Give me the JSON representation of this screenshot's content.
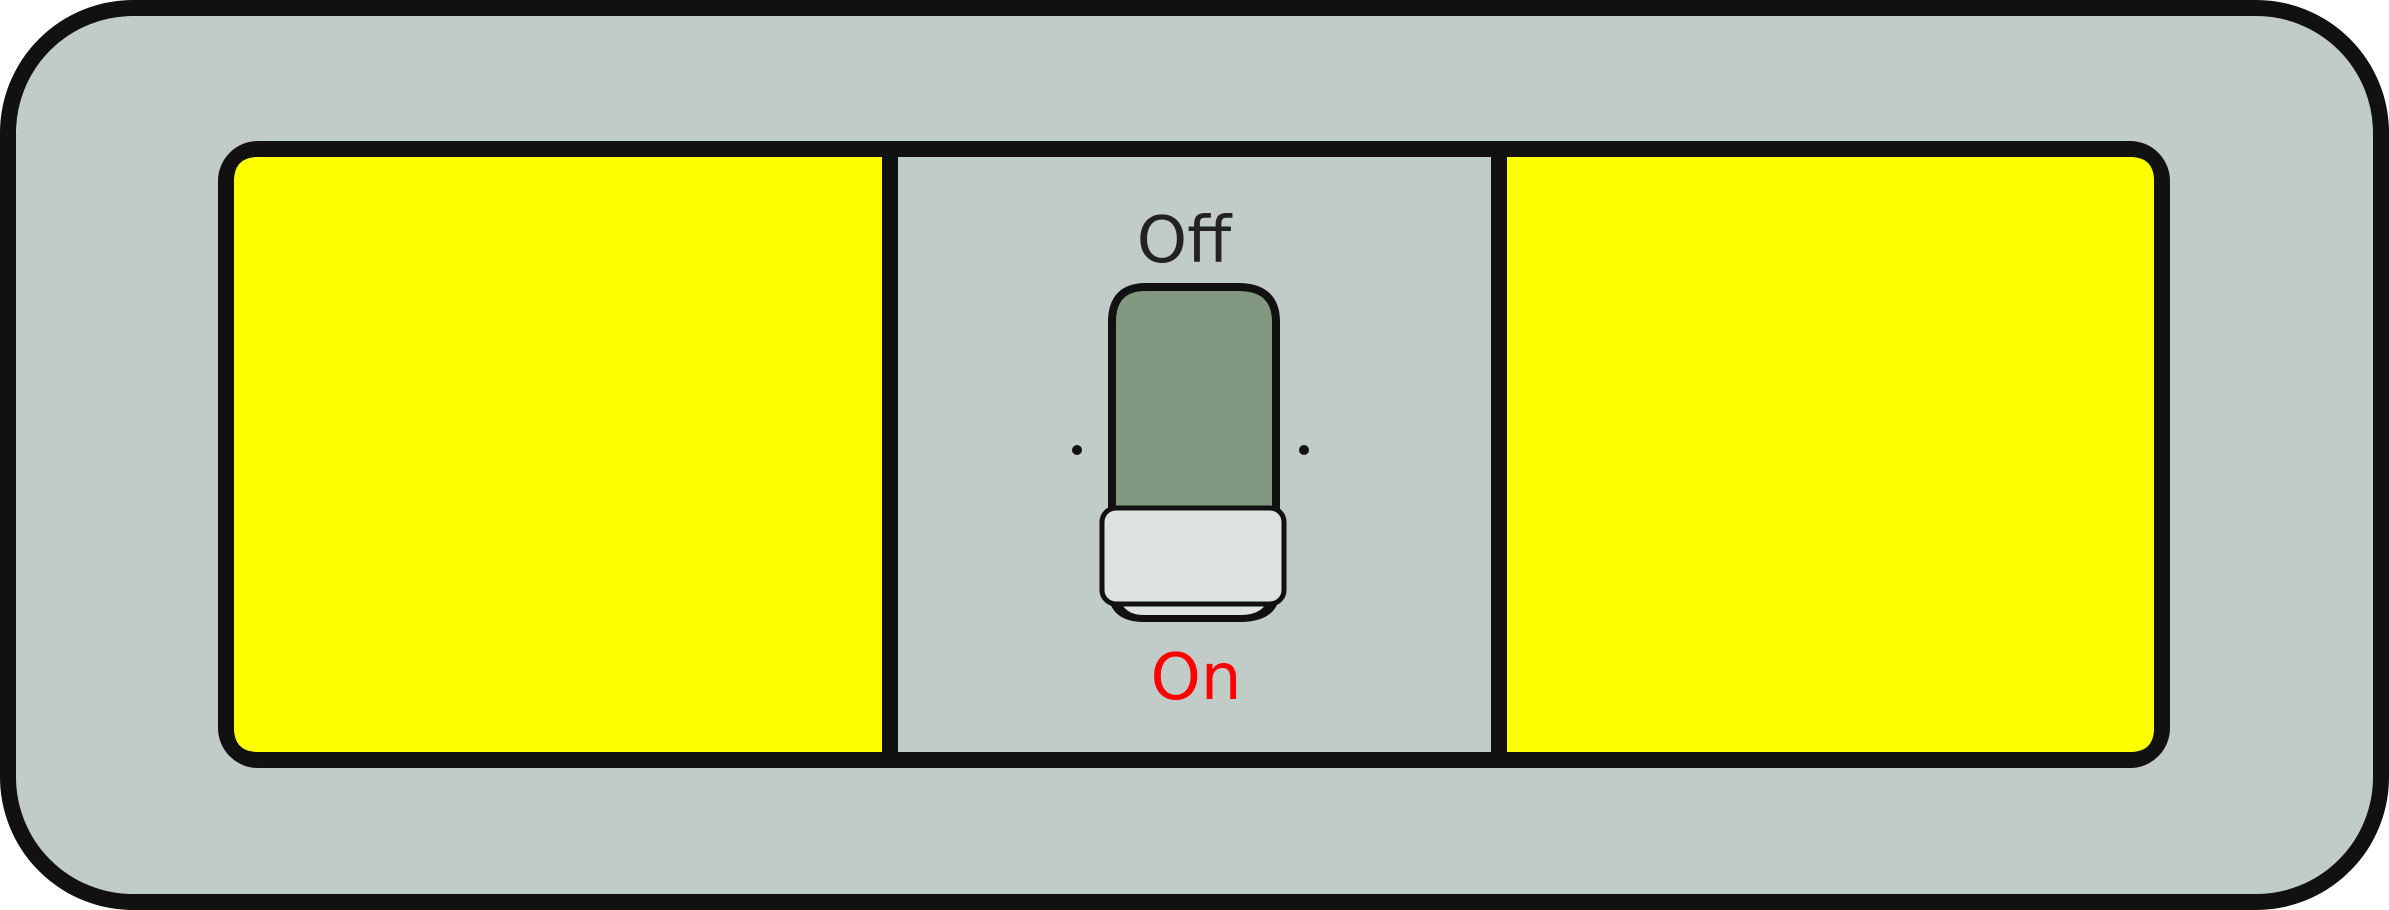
{
  "switch": {
    "off_label": "Off",
    "on_label": "On",
    "state": "on"
  },
  "colors": {
    "plate": "#c1ccc8",
    "indicator_panels": "#ffff00",
    "toggle_track": "#82977f",
    "toggle_lever": "#dfe3df",
    "outline": "#111111",
    "off_label": "#222222",
    "on_label": "#ff0000"
  }
}
